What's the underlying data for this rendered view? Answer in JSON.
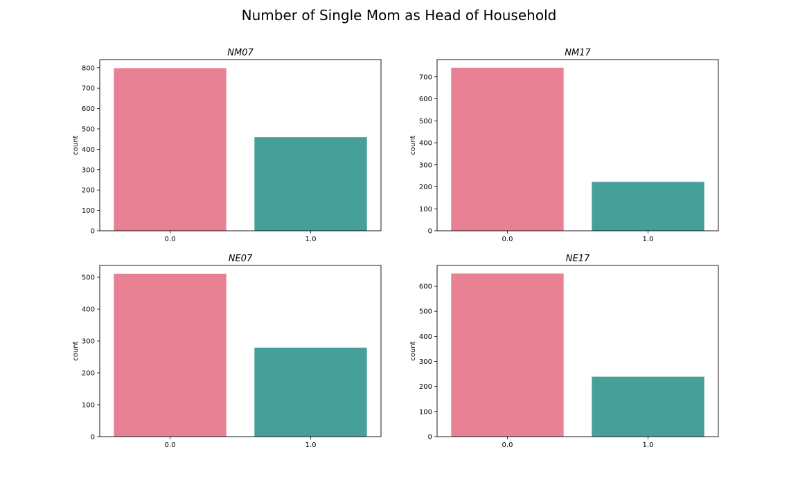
{
  "figure": {
    "title": "Number of Single Mom as Head of Household"
  },
  "colors": {
    "bar_0": "#e88194",
    "bar_1": "#469f98"
  },
  "chart_data": [
    {
      "type": "bar",
      "title": "NM07",
      "xlabel": "",
      "ylabel": "count",
      "categories": [
        "0.0",
        "1.0"
      ],
      "values": [
        798,
        459
      ],
      "ylim": [
        0,
        840
      ],
      "yticks": [
        0,
        100,
        200,
        300,
        400,
        500,
        600,
        700,
        800
      ],
      "grid": false
    },
    {
      "type": "bar",
      "title": "NM17",
      "xlabel": "",
      "ylabel": "count",
      "categories": [
        "0.0",
        "1.0"
      ],
      "values": [
        741,
        222
      ],
      "ylim": [
        0,
        778
      ],
      "yticks": [
        0,
        100,
        200,
        300,
        400,
        500,
        600,
        700
      ],
      "grid": false
    },
    {
      "type": "bar",
      "title": "NE07",
      "xlabel": "",
      "ylabel": "count",
      "categories": [
        "0.0",
        "1.0"
      ],
      "values": [
        511,
        279
      ],
      "ylim": [
        0,
        537
      ],
      "yticks": [
        0,
        100,
        200,
        300,
        400,
        500
      ],
      "grid": false
    },
    {
      "type": "bar",
      "title": "NE17",
      "xlabel": "",
      "ylabel": "count",
      "categories": [
        "0.0",
        "1.0"
      ],
      "values": [
        651,
        239
      ],
      "ylim": [
        0,
        683
      ],
      "yticks": [
        0,
        100,
        200,
        300,
        400,
        500,
        600
      ],
      "grid": false
    }
  ]
}
